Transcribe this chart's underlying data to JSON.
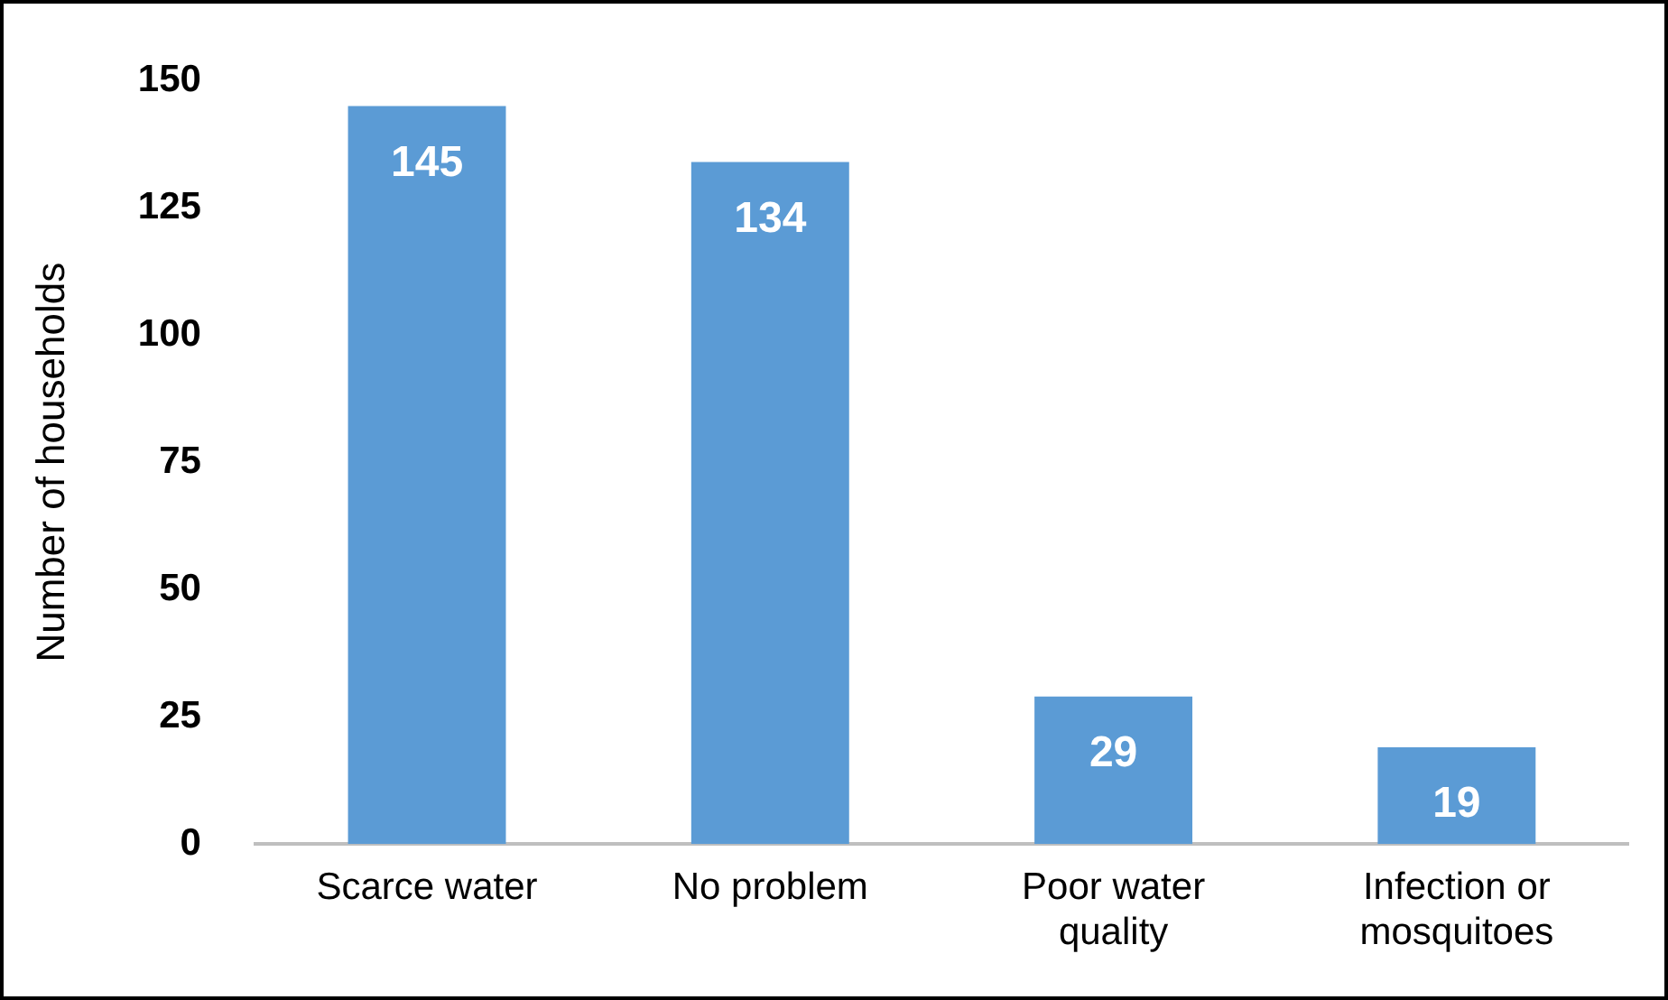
{
  "chart_data": {
    "type": "bar",
    "ylabel": "Number of households",
    "categories": [
      "Scarce water",
      "No problem",
      "Poor water quality",
      "Infection or mosquitoes"
    ],
    "values": [
      145,
      134,
      29,
      19
    ],
    "color": "#5b9bd5",
    "ylim": [
      0,
      150
    ],
    "yticks": [
      0,
      25,
      50,
      75,
      100,
      125,
      150
    ],
    "grid": false,
    "legend": false,
    "data_labels": true
  }
}
